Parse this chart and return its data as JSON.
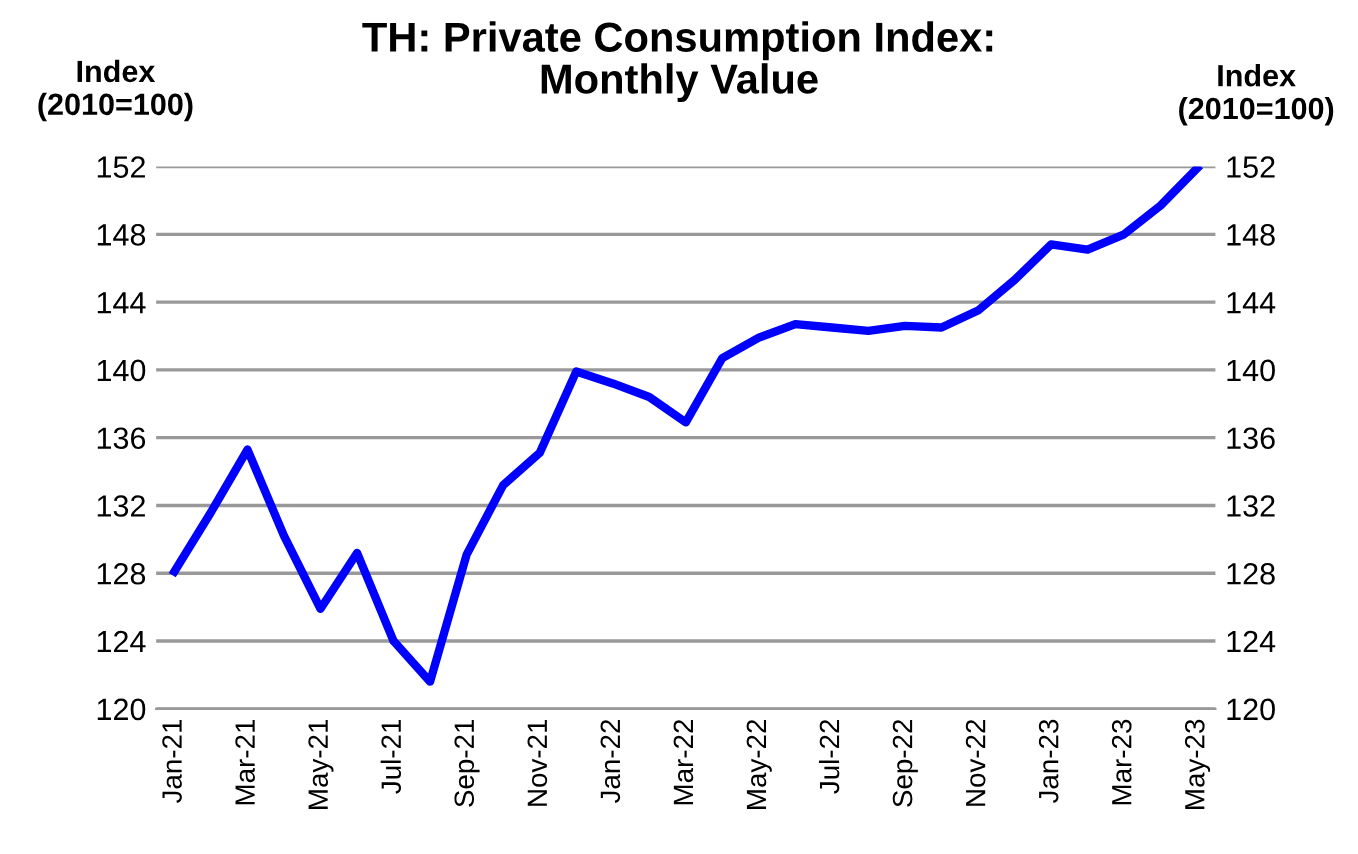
{
  "chart_data": {
    "type": "line",
    "title": "TH: Private Consumption Index:\nMonthly Value",
    "ylabel": "Index\n(2010=100)",
    "y2label": "Index\n(2010=100)",
    "categories": [
      "Jan-21",
      null,
      "Mar-21",
      null,
      "May-21",
      null,
      "Jul-21",
      null,
      "Sep-21",
      null,
      "Nov-21",
      null,
      "Jan-22",
      null,
      "Mar-22",
      null,
      "May-22",
      null,
      "Jul-22",
      null,
      "Sep-22",
      null,
      "Nov-22",
      null,
      "Jan-23",
      null,
      "Mar-23",
      null,
      "May-23"
    ],
    "series": [
      {
        "color": "#0000ff",
        "values": [
          128.1,
          131.6,
          135.3,
          130.2,
          125.9,
          129.2,
          124.0,
          121.6,
          129.1,
          133.2,
          135.1,
          139.9,
          139.2,
          138.4,
          136.9,
          140.7,
          141.9,
          142.7,
          142.5,
          142.3,
          142.6,
          142.5,
          143.5,
          145.3,
          147.4,
          147.1,
          148.0,
          149.7,
          151.9
        ]
      }
    ],
    "ylim": [
      120,
      152
    ],
    "yticks": [
      120,
      124,
      128,
      132,
      136,
      140,
      144,
      148,
      152
    ],
    "y2lim": [
      120,
      152
    ],
    "y2ticks": [
      120,
      124,
      128,
      132,
      136,
      140,
      144,
      148,
      152
    ],
    "grid": "y",
    "marker": "none",
    "line_style": "solid"
  }
}
